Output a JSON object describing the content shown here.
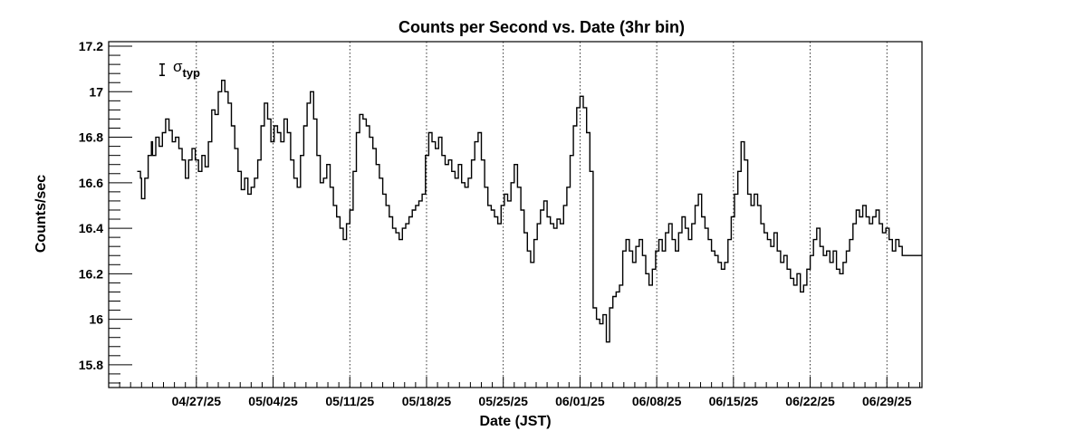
{
  "chart_data": {
    "type": "line",
    "title": "Counts per Second vs. Date (3hr bin)",
    "xlabel": "Date (JST)",
    "ylabel": "Counts/sec",
    "x_start": "04/19/25",
    "x_end": "07/02/25",
    "xlim_days": [
      0,
      74.2
    ],
    "ylim": [
      15.7,
      17.22
    ],
    "y_ticks": [
      15.8,
      16,
      16.2,
      16.4,
      16.6,
      16.8,
      17,
      17.2
    ],
    "y_tick_labels": [
      "15.8",
      "16",
      "16.2",
      "16.4",
      "16.6",
      "16.8",
      "17",
      "17.2"
    ],
    "x_ticks": [
      {
        "label": "04/27/25",
        "day": 8
      },
      {
        "label": "05/04/25",
        "day": 15
      },
      {
        "label": "05/11/25",
        "day": 22
      },
      {
        "label": "05/18/25",
        "day": 29
      },
      {
        "label": "05/25/25",
        "day": 36
      },
      {
        "label": "06/01/25",
        "day": 43
      },
      {
        "label": "06/08/25",
        "day": 50
      },
      {
        "label": "06/15/25",
        "day": 57
      },
      {
        "label": "06/22/25",
        "day": 64
      },
      {
        "label": "06/29/25",
        "day": 71
      }
    ],
    "grid": "vertical-dotted",
    "legend": "none",
    "annotation": {
      "symbol": "σ",
      "subscript": "typ",
      "error_bar_value": 0.05
    },
    "series": [
      {
        "points": [
          [
            2.6,
            16.65
          ],
          [
            2.9,
            16.62
          ],
          [
            3.0,
            16.53
          ],
          [
            3.3,
            16.62
          ],
          [
            3.6,
            16.72
          ],
          [
            3.9,
            16.78
          ],
          [
            4.0,
            16.72
          ],
          [
            4.3,
            16.8
          ],
          [
            4.6,
            16.76
          ],
          [
            4.9,
            16.82
          ],
          [
            5.2,
            16.88
          ],
          [
            5.5,
            16.83
          ],
          [
            5.8,
            16.78
          ],
          [
            6.1,
            16.8
          ],
          [
            6.4,
            16.75
          ],
          [
            6.7,
            16.7
          ],
          [
            7.0,
            16.62
          ],
          [
            7.3,
            16.7
          ],
          [
            7.6,
            16.75
          ],
          [
            7.9,
            16.7
          ],
          [
            8.2,
            16.65
          ],
          [
            8.5,
            16.72
          ],
          [
            8.8,
            16.67
          ],
          [
            9.1,
            16.78
          ],
          [
            9.4,
            16.92
          ],
          [
            9.7,
            16.9
          ],
          [
            10.0,
            17.0
          ],
          [
            10.3,
            17.05
          ],
          [
            10.6,
            17.0
          ],
          [
            10.9,
            16.95
          ],
          [
            11.2,
            16.85
          ],
          [
            11.5,
            16.75
          ],
          [
            11.8,
            16.65
          ],
          [
            12.1,
            16.57
          ],
          [
            12.4,
            16.62
          ],
          [
            12.7,
            16.55
          ],
          [
            13.0,
            16.58
          ],
          [
            13.3,
            16.62
          ],
          [
            13.6,
            16.7
          ],
          [
            13.9,
            16.85
          ],
          [
            14.2,
            16.95
          ],
          [
            14.5,
            16.88
          ],
          [
            14.8,
            16.78
          ],
          [
            15.1,
            16.85
          ],
          [
            15.4,
            16.82
          ],
          [
            15.7,
            16.78
          ],
          [
            16.0,
            16.88
          ],
          [
            16.3,
            16.82
          ],
          [
            16.6,
            16.7
          ],
          [
            16.9,
            16.62
          ],
          [
            17.2,
            16.58
          ],
          [
            17.5,
            16.72
          ],
          [
            17.8,
            16.85
          ],
          [
            18.1,
            16.95
          ],
          [
            18.4,
            17.0
          ],
          [
            18.7,
            16.88
          ],
          [
            19.0,
            16.72
          ],
          [
            19.3,
            16.6
          ],
          [
            19.6,
            16.62
          ],
          [
            19.9,
            16.68
          ],
          [
            20.2,
            16.58
          ],
          [
            20.5,
            16.5
          ],
          [
            20.8,
            16.45
          ],
          [
            21.1,
            16.4
          ],
          [
            21.4,
            16.35
          ],
          [
            21.7,
            16.42
          ],
          [
            22.0,
            16.48
          ],
          [
            22.3,
            16.65
          ],
          [
            22.6,
            16.82
          ],
          [
            22.9,
            16.9
          ],
          [
            23.2,
            16.88
          ],
          [
            23.5,
            16.85
          ],
          [
            23.8,
            16.8
          ],
          [
            24.1,
            16.75
          ],
          [
            24.4,
            16.68
          ],
          [
            24.7,
            16.62
          ],
          [
            25.0,
            16.55
          ],
          [
            25.3,
            16.5
          ],
          [
            25.6,
            16.45
          ],
          [
            25.9,
            16.4
          ],
          [
            26.2,
            16.38
          ],
          [
            26.5,
            16.35
          ],
          [
            26.8,
            16.4
          ],
          [
            27.1,
            16.42
          ],
          [
            27.4,
            16.45
          ],
          [
            27.7,
            16.48
          ],
          [
            28.0,
            16.5
          ],
          [
            28.3,
            16.52
          ],
          [
            28.6,
            16.55
          ],
          [
            28.9,
            16.72
          ],
          [
            29.2,
            16.82
          ],
          [
            29.5,
            16.78
          ],
          [
            29.8,
            16.75
          ],
          [
            30.1,
            16.8
          ],
          [
            30.4,
            16.72
          ],
          [
            30.7,
            16.68
          ],
          [
            31.0,
            16.7
          ],
          [
            31.3,
            16.65
          ],
          [
            31.6,
            16.62
          ],
          [
            31.9,
            16.68
          ],
          [
            32.2,
            16.6
          ],
          [
            32.5,
            16.58
          ],
          [
            32.8,
            16.62
          ],
          [
            33.1,
            16.7
          ],
          [
            33.4,
            16.78
          ],
          [
            33.7,
            16.82
          ],
          [
            34.0,
            16.7
          ],
          [
            34.3,
            16.58
          ],
          [
            34.6,
            16.5
          ],
          [
            34.9,
            16.48
          ],
          [
            35.2,
            16.45
          ],
          [
            35.5,
            16.42
          ],
          [
            35.8,
            16.5
          ],
          [
            36.1,
            16.55
          ],
          [
            36.4,
            16.52
          ],
          [
            36.7,
            16.6
          ],
          [
            37.0,
            16.68
          ],
          [
            37.3,
            16.58
          ],
          [
            37.6,
            16.48
          ],
          [
            37.9,
            16.38
          ],
          [
            38.2,
            16.3
          ],
          [
            38.5,
            16.25
          ],
          [
            38.8,
            16.35
          ],
          [
            39.1,
            16.42
          ],
          [
            39.4,
            16.48
          ],
          [
            39.7,
            16.52
          ],
          [
            40.0,
            16.45
          ],
          [
            40.3,
            16.42
          ],
          [
            40.6,
            16.4
          ],
          [
            40.9,
            16.44
          ],
          [
            41.2,
            16.42
          ],
          [
            41.5,
            16.5
          ],
          [
            41.8,
            16.58
          ],
          [
            42.1,
            16.72
          ],
          [
            42.4,
            16.85
          ],
          [
            42.7,
            16.93
          ],
          [
            43.0,
            16.98
          ],
          [
            43.3,
            16.93
          ],
          [
            43.6,
            16.82
          ],
          [
            43.9,
            16.65
          ],
          [
            44.2,
            16.05
          ],
          [
            44.5,
            16.0
          ],
          [
            44.8,
            15.98
          ],
          [
            45.1,
            16.02
          ],
          [
            45.4,
            15.9
          ],
          [
            45.7,
            16.05
          ],
          [
            46.0,
            16.1
          ],
          [
            46.3,
            16.12
          ],
          [
            46.6,
            16.15
          ],
          [
            46.9,
            16.3
          ],
          [
            47.2,
            16.35
          ],
          [
            47.5,
            16.3
          ],
          [
            47.8,
            16.25
          ],
          [
            48.1,
            16.32
          ],
          [
            48.4,
            16.35
          ],
          [
            48.7,
            16.28
          ],
          [
            49.0,
            16.2
          ],
          [
            49.3,
            16.15
          ],
          [
            49.6,
            16.22
          ],
          [
            49.9,
            16.3
          ],
          [
            50.2,
            16.35
          ],
          [
            50.5,
            16.3
          ],
          [
            50.8,
            16.38
          ],
          [
            51.1,
            16.42
          ],
          [
            51.4,
            16.35
          ],
          [
            51.7,
            16.3
          ],
          [
            52.0,
            16.38
          ],
          [
            52.3,
            16.45
          ],
          [
            52.6,
            16.4
          ],
          [
            52.9,
            16.35
          ],
          [
            53.2,
            16.42
          ],
          [
            53.5,
            16.5
          ],
          [
            53.8,
            16.55
          ],
          [
            54.1,
            16.45
          ],
          [
            54.4,
            16.4
          ],
          [
            54.7,
            16.35
          ],
          [
            55.0,
            16.3
          ],
          [
            55.3,
            16.28
          ],
          [
            55.6,
            16.25
          ],
          [
            55.9,
            16.22
          ],
          [
            56.2,
            16.25
          ],
          [
            56.5,
            16.35
          ],
          [
            56.8,
            16.45
          ],
          [
            57.1,
            16.55
          ],
          [
            57.4,
            16.65
          ],
          [
            57.7,
            16.78
          ],
          [
            58.0,
            16.7
          ],
          [
            58.3,
            16.55
          ],
          [
            58.6,
            16.5
          ],
          [
            58.9,
            16.55
          ],
          [
            59.2,
            16.5
          ],
          [
            59.5,
            16.42
          ],
          [
            59.8,
            16.38
          ],
          [
            60.1,
            16.35
          ],
          [
            60.4,
            16.32
          ],
          [
            60.7,
            16.38
          ],
          [
            61.0,
            16.3
          ],
          [
            61.3,
            16.25
          ],
          [
            61.6,
            16.28
          ],
          [
            61.9,
            16.22
          ],
          [
            62.2,
            16.18
          ],
          [
            62.5,
            16.15
          ],
          [
            62.8,
            16.2
          ],
          [
            63.1,
            16.12
          ],
          [
            63.4,
            16.15
          ],
          [
            63.7,
            16.22
          ],
          [
            64.0,
            16.28
          ],
          [
            64.3,
            16.35
          ],
          [
            64.6,
            16.4
          ],
          [
            64.9,
            16.32
          ],
          [
            65.2,
            16.28
          ],
          [
            65.5,
            16.3
          ],
          [
            65.8,
            16.25
          ],
          [
            66.1,
            16.3
          ],
          [
            66.4,
            16.22
          ],
          [
            66.7,
            16.2
          ],
          [
            67.0,
            16.25
          ],
          [
            67.3,
            16.3
          ],
          [
            67.6,
            16.35
          ],
          [
            67.9,
            16.42
          ],
          [
            68.2,
            16.48
          ],
          [
            68.5,
            16.45
          ],
          [
            68.8,
            16.5
          ],
          [
            69.1,
            16.45
          ],
          [
            69.4,
            16.42
          ],
          [
            69.7,
            16.45
          ],
          [
            70.0,
            16.48
          ],
          [
            70.3,
            16.42
          ],
          [
            70.6,
            16.38
          ],
          [
            70.9,
            16.4
          ],
          [
            71.2,
            16.35
          ],
          [
            71.5,
            16.3
          ],
          [
            71.8,
            16.35
          ],
          [
            72.1,
            16.32
          ],
          [
            72.4,
            16.28
          ]
        ]
      }
    ]
  }
}
